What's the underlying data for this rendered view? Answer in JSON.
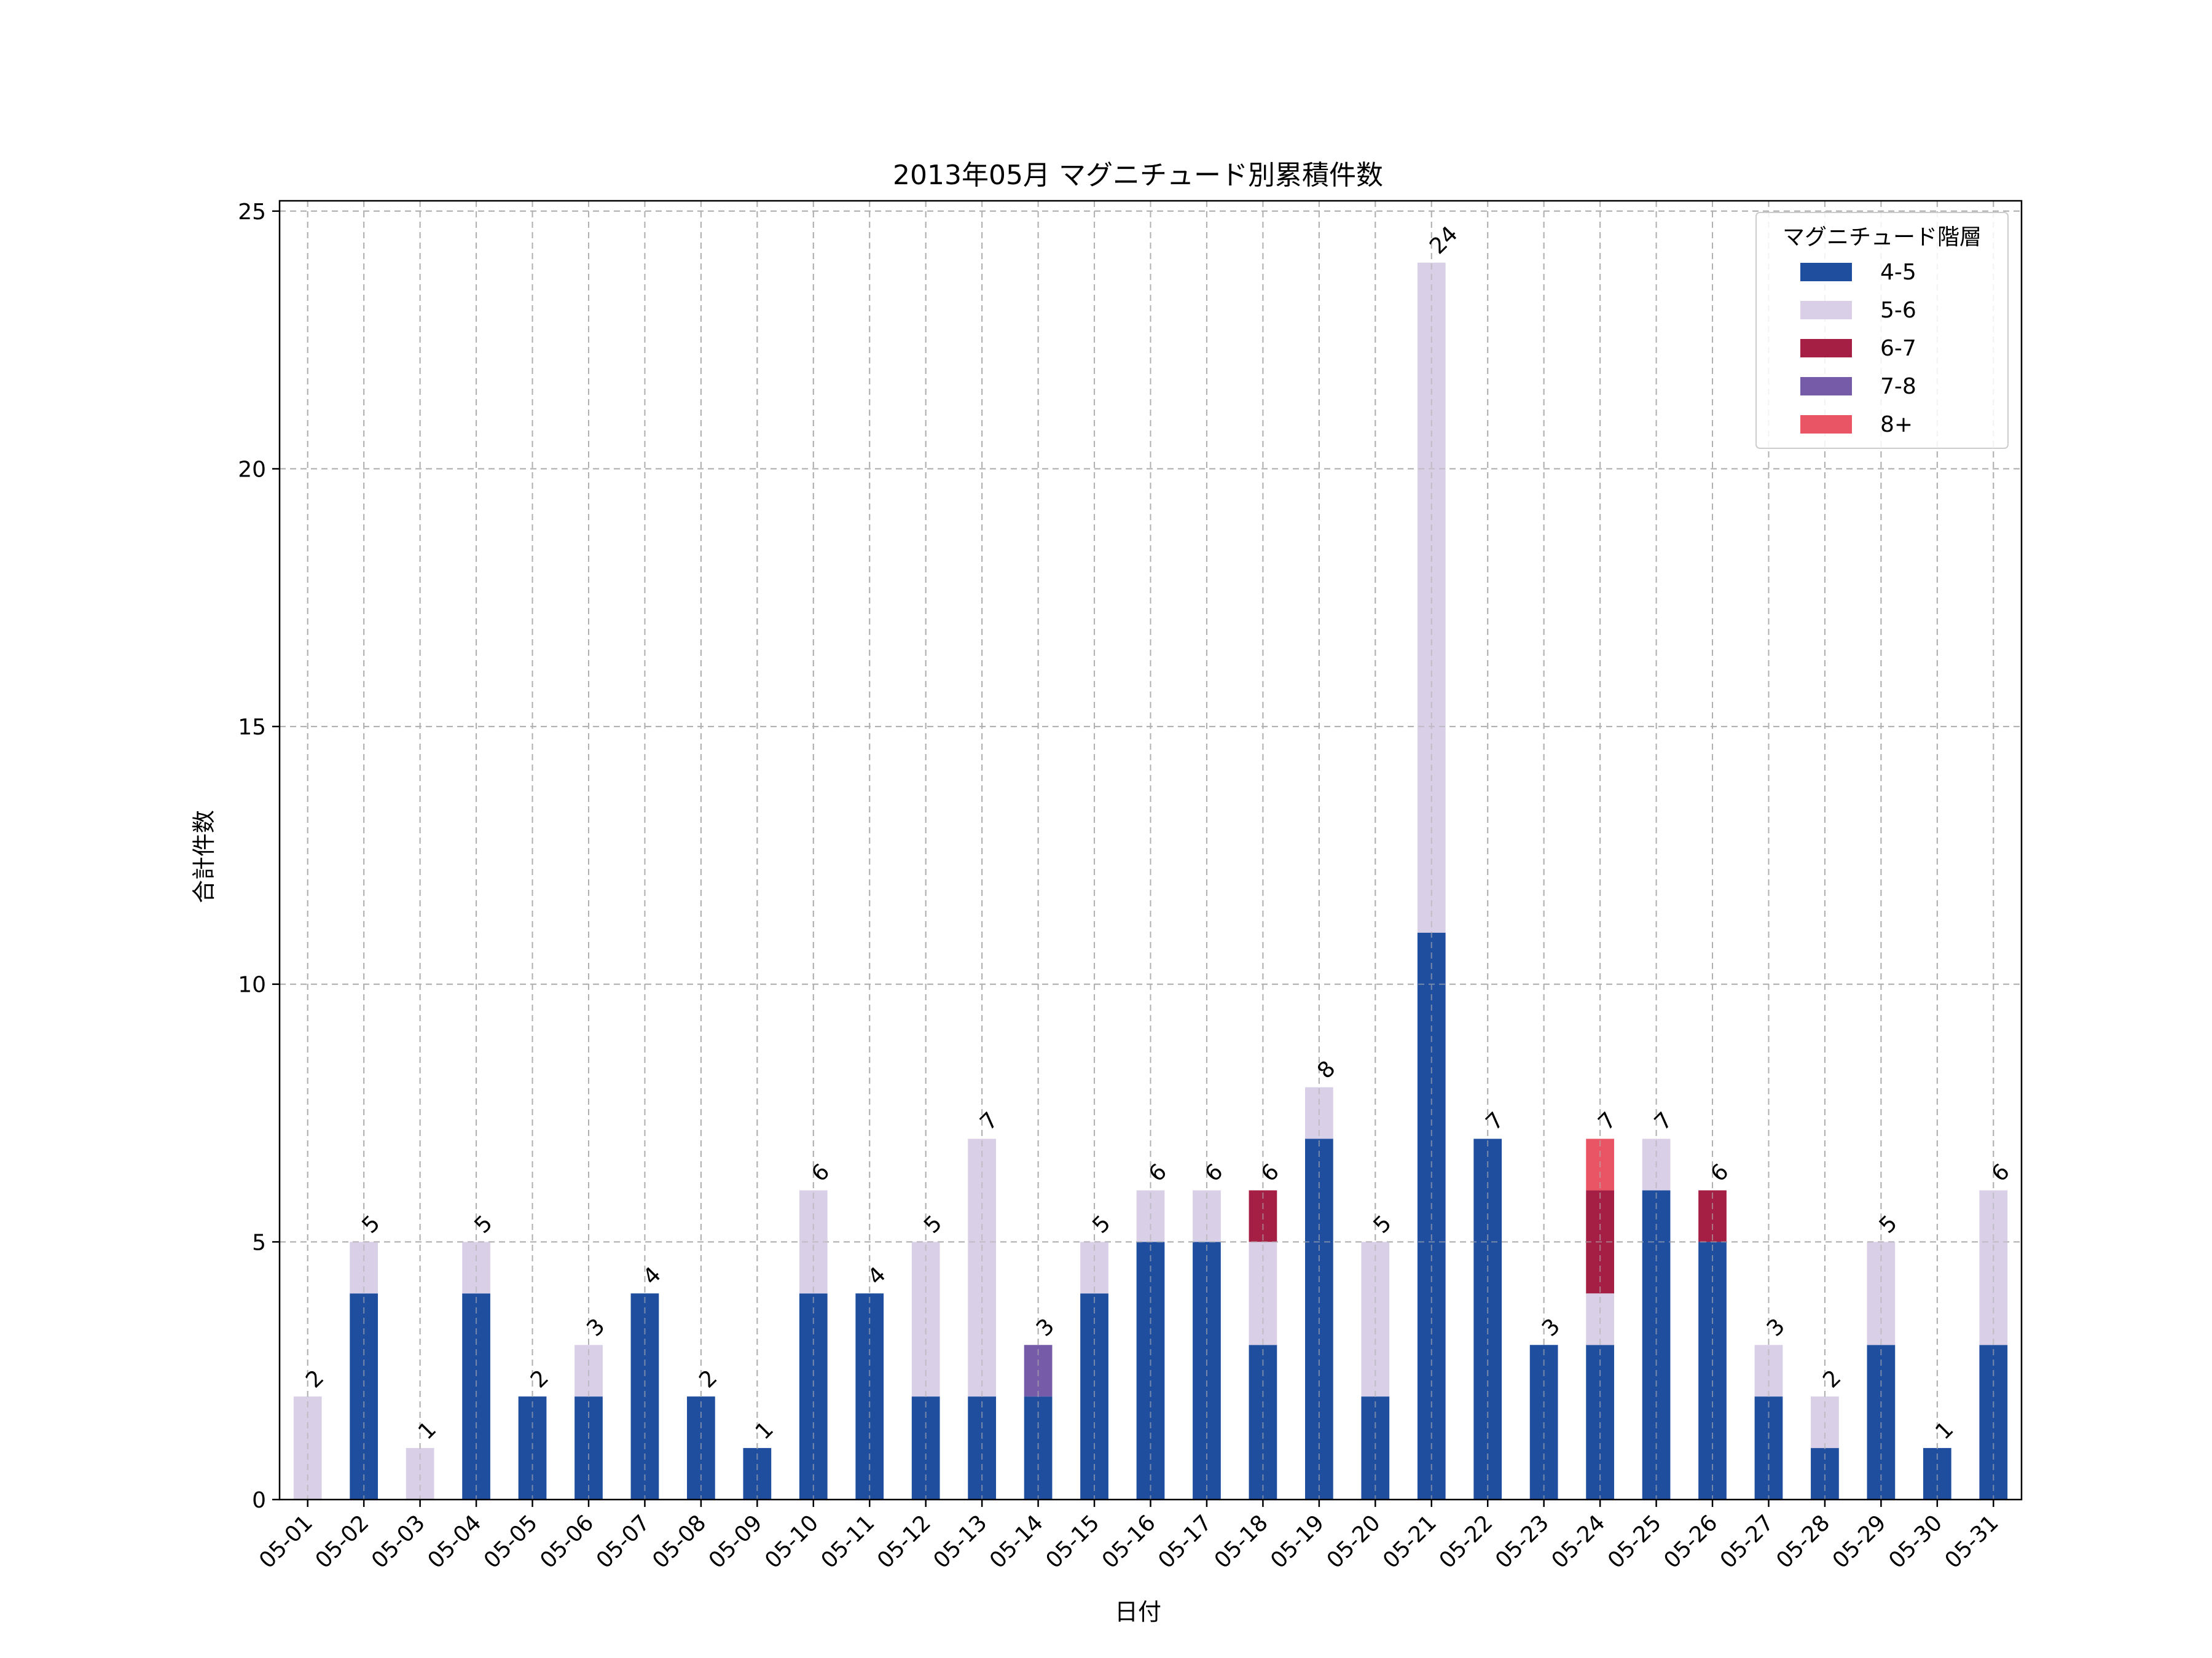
{
  "chart_data": {
    "type": "bar",
    "stacked": true,
    "title": "2013年05月 マグニチュード別累積件数",
    "xlabel": "日付",
    "ylabel": "合計件数",
    "ylim": [
      0,
      25.2
    ],
    "yticks": [
      0,
      5,
      10,
      15,
      20,
      25
    ],
    "grid": true,
    "legend": {
      "title": "マグニチュード階層",
      "placement": "top-right"
    },
    "categories": [
      "05-01",
      "05-02",
      "05-03",
      "05-04",
      "05-05",
      "05-06",
      "05-07",
      "05-08",
      "05-09",
      "05-10",
      "05-11",
      "05-12",
      "05-13",
      "05-14",
      "05-15",
      "05-16",
      "05-17",
      "05-18",
      "05-19",
      "05-20",
      "05-21",
      "05-22",
      "05-23",
      "05-24",
      "05-25",
      "05-26",
      "05-27",
      "05-28",
      "05-29",
      "05-30",
      "05-31"
    ],
    "series": [
      {
        "name": "4-5",
        "color": "#1f4e9f",
        "values": [
          0,
          4,
          0,
          4,
          2,
          2,
          4,
          2,
          1,
          4,
          4,
          2,
          2,
          2,
          4,
          5,
          5,
          3,
          7,
          2,
          11,
          7,
          3,
          3,
          6,
          5,
          2,
          1,
          3,
          1,
          3
        ]
      },
      {
        "name": "5-6",
        "color": "#d9cfe6",
        "values": [
          2,
          1,
          1,
          1,
          0,
          1,
          0,
          0,
          0,
          2,
          0,
          3,
          5,
          0,
          1,
          1,
          1,
          2,
          1,
          3,
          13,
          0,
          0,
          1,
          1,
          0,
          1,
          1,
          2,
          0,
          3
        ]
      },
      {
        "name": "6-7",
        "color": "#a51f45",
        "values": [
          0,
          0,
          0,
          0,
          0,
          0,
          0,
          0,
          0,
          0,
          0,
          0,
          0,
          0,
          0,
          0,
          0,
          1,
          0,
          0,
          0,
          0,
          0,
          2,
          0,
          1,
          0,
          0,
          0,
          0,
          0
        ]
      },
      {
        "name": "7-8",
        "color": "#765ba8",
        "values": [
          0,
          0,
          0,
          0,
          0,
          0,
          0,
          0,
          0,
          0,
          0,
          0,
          0,
          1,
          0,
          0,
          0,
          0,
          0,
          0,
          0,
          0,
          0,
          0,
          0,
          0,
          0,
          0,
          0,
          0,
          0
        ]
      },
      {
        "name": "8+",
        "color": "#ea5566",
        "values": [
          0,
          0,
          0,
          0,
          0,
          0,
          0,
          0,
          0,
          0,
          0,
          0,
          0,
          0,
          0,
          0,
          0,
          0,
          0,
          0,
          0,
          0,
          0,
          1,
          0,
          0,
          0,
          0,
          0,
          0,
          0
        ]
      }
    ],
    "totals": [
      2,
      5,
      1,
      5,
      2,
      3,
      4,
      2,
      1,
      6,
      4,
      5,
      7,
      3,
      5,
      6,
      6,
      6,
      8,
      5,
      24,
      7,
      3,
      7,
      7,
      6,
      3,
      2,
      5,
      1,
      6
    ]
  }
}
